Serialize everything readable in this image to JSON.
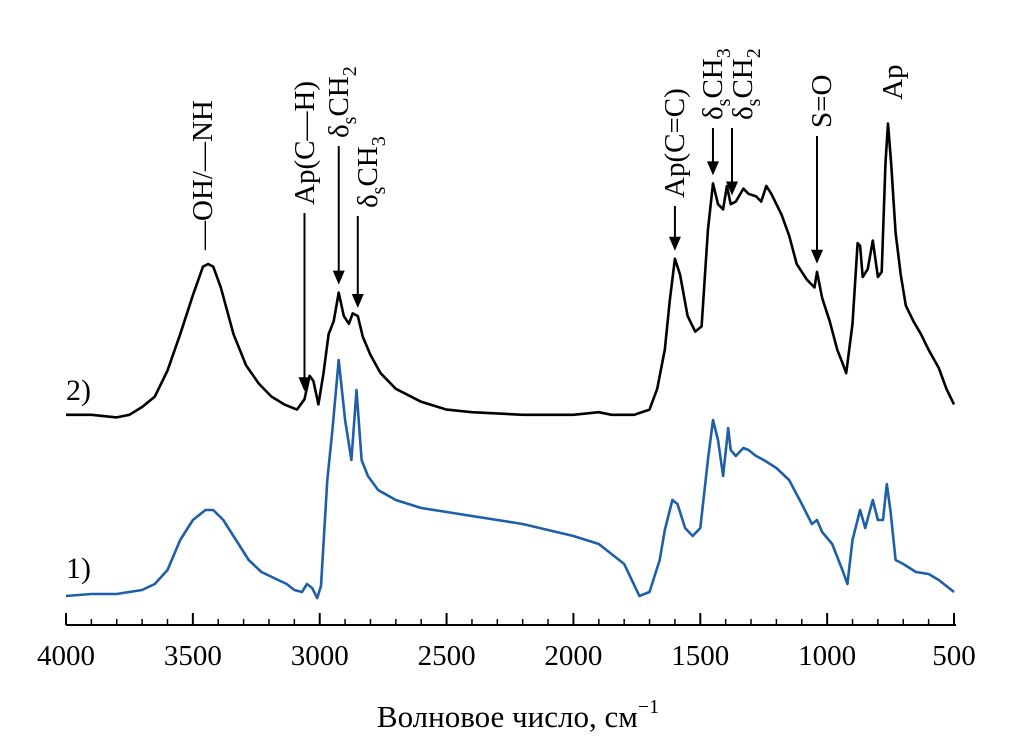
{
  "chart_data": {
    "type": "line",
    "title": "",
    "xlabel": "Волновое число, см",
    "xlabel_sup": "−1",
    "ylabel": "",
    "xlim": [
      4000,
      500
    ],
    "x_reversed": true,
    "x_ticks": [
      4000,
      3500,
      3000,
      2500,
      2000,
      1500,
      1000,
      500
    ],
    "x_tick_labels": [
      "4000",
      "3500",
      "3000",
      "2500",
      "2000",
      "1500",
      "1000",
      "500"
    ],
    "grid": false,
    "legend": "none",
    "series": [
      {
        "name": "1)",
        "color": "#1f5fa8",
        "points": [
          [
            4000,
            0.02
          ],
          [
            3900,
            0.03
          ],
          [
            3800,
            0.03
          ],
          [
            3750,
            0.04
          ],
          [
            3700,
            0.05
          ],
          [
            3650,
            0.08
          ],
          [
            3600,
            0.15
          ],
          [
            3550,
            0.3
          ],
          [
            3500,
            0.4
          ],
          [
            3450,
            0.45
          ],
          [
            3420,
            0.45
          ],
          [
            3380,
            0.4
          ],
          [
            3330,
            0.3
          ],
          [
            3280,
            0.2
          ],
          [
            3230,
            0.14
          ],
          [
            3180,
            0.11
          ],
          [
            3130,
            0.08
          ],
          [
            3100,
            0.05
          ],
          [
            3070,
            0.04
          ],
          [
            3050,
            0.08
          ],
          [
            3030,
            0.06
          ],
          [
            3010,
            0.01
          ],
          [
            2995,
            0.07
          ],
          [
            2970,
            0.6
          ],
          [
            2950,
            0.85
          ],
          [
            2925,
            1.2
          ],
          [
            2900,
            0.9
          ],
          [
            2875,
            0.7
          ],
          [
            2855,
            1.05
          ],
          [
            2835,
            0.7
          ],
          [
            2810,
            0.62
          ],
          [
            2770,
            0.55
          ],
          [
            2700,
            0.5
          ],
          [
            2600,
            0.46
          ],
          [
            2500,
            0.44
          ],
          [
            2400,
            0.42
          ],
          [
            2200,
            0.38
          ],
          [
            2000,
            0.32
          ],
          [
            1900,
            0.28
          ],
          [
            1800,
            0.18
          ],
          [
            1740,
            0.02
          ],
          [
            1700,
            0.04
          ],
          [
            1660,
            0.2
          ],
          [
            1640,
            0.35
          ],
          [
            1610,
            0.5
          ],
          [
            1590,
            0.48
          ],
          [
            1560,
            0.36
          ],
          [
            1530,
            0.32
          ],
          [
            1500,
            0.36
          ],
          [
            1470,
            0.7
          ],
          [
            1450,
            0.9
          ],
          [
            1430,
            0.8
          ],
          [
            1410,
            0.62
          ],
          [
            1390,
            0.86
          ],
          [
            1380,
            0.75
          ],
          [
            1360,
            0.72
          ],
          [
            1330,
            0.76
          ],
          [
            1310,
            0.75
          ],
          [
            1280,
            0.72
          ],
          [
            1250,
            0.7
          ],
          [
            1200,
            0.66
          ],
          [
            1150,
            0.6
          ],
          [
            1100,
            0.48
          ],
          [
            1060,
            0.38
          ],
          [
            1040,
            0.4
          ],
          [
            1020,
            0.34
          ],
          [
            980,
            0.28
          ],
          [
            940,
            0.15
          ],
          [
            920,
            0.08
          ],
          [
            900,
            0.3
          ],
          [
            870,
            0.45
          ],
          [
            850,
            0.36
          ],
          [
            820,
            0.5
          ],
          [
            800,
            0.4
          ],
          [
            780,
            0.4
          ],
          [
            765,
            0.58
          ],
          [
            750,
            0.44
          ],
          [
            730,
            0.2
          ],
          [
            700,
            0.18
          ],
          [
            650,
            0.14
          ],
          [
            600,
            0.13
          ],
          [
            560,
            0.1
          ],
          [
            530,
            0.07
          ],
          [
            500,
            0.04
          ]
        ]
      },
      {
        "name": "2)",
        "color": "#000000",
        "points": [
          [
            4000,
            0.02
          ],
          [
            3900,
            0.02
          ],
          [
            3800,
            0.01
          ],
          [
            3750,
            0.02
          ],
          [
            3700,
            0.05
          ],
          [
            3650,
            0.09
          ],
          [
            3600,
            0.19
          ],
          [
            3550,
            0.33
          ],
          [
            3500,
            0.48
          ],
          [
            3460,
            0.59
          ],
          [
            3440,
            0.6
          ],
          [
            3420,
            0.59
          ],
          [
            3390,
            0.51
          ],
          [
            3340,
            0.33
          ],
          [
            3290,
            0.21
          ],
          [
            3240,
            0.14
          ],
          [
            3190,
            0.09
          ],
          [
            3140,
            0.06
          ],
          [
            3090,
            0.04
          ],
          [
            3060,
            0.08
          ],
          [
            3040,
            0.17
          ],
          [
            3025,
            0.15
          ],
          [
            3005,
            0.06
          ],
          [
            2985,
            0.18
          ],
          [
            2965,
            0.33
          ],
          [
            2945,
            0.38
          ],
          [
            2925,
            0.49
          ],
          [
            2905,
            0.4
          ],
          [
            2885,
            0.37
          ],
          [
            2870,
            0.41
          ],
          [
            2850,
            0.4
          ],
          [
            2830,
            0.32
          ],
          [
            2800,
            0.25
          ],
          [
            2760,
            0.18
          ],
          [
            2700,
            0.12
          ],
          [
            2600,
            0.07
          ],
          [
            2500,
            0.04
          ],
          [
            2400,
            0.03
          ],
          [
            2200,
            0.02
          ],
          [
            2000,
            0.02
          ],
          [
            1900,
            0.03
          ],
          [
            1850,
            0.02
          ],
          [
            1760,
            0.02
          ],
          [
            1700,
            0.04
          ],
          [
            1670,
            0.12
          ],
          [
            1640,
            0.27
          ],
          [
            1620,
            0.46
          ],
          [
            1600,
            0.62
          ],
          [
            1580,
            0.56
          ],
          [
            1550,
            0.4
          ],
          [
            1520,
            0.34
          ],
          [
            1495,
            0.36
          ],
          [
            1470,
            0.73
          ],
          [
            1450,
            0.91
          ],
          [
            1430,
            0.83
          ],
          [
            1410,
            0.81
          ],
          [
            1395,
            0.9
          ],
          [
            1380,
            0.83
          ],
          [
            1360,
            0.84
          ],
          [
            1330,
            0.89
          ],
          [
            1310,
            0.87
          ],
          [
            1280,
            0.86
          ],
          [
            1260,
            0.84
          ],
          [
            1240,
            0.9
          ],
          [
            1220,
            0.87
          ],
          [
            1180,
            0.79
          ],
          [
            1150,
            0.71
          ],
          [
            1120,
            0.6
          ],
          [
            1080,
            0.54
          ],
          [
            1050,
            0.51
          ],
          [
            1040,
            0.57
          ],
          [
            1020,
            0.47
          ],
          [
            990,
            0.38
          ],
          [
            960,
            0.27
          ],
          [
            940,
            0.22
          ],
          [
            925,
            0.18
          ],
          [
            900,
            0.37
          ],
          [
            880,
            0.68
          ],
          [
            870,
            0.67
          ],
          [
            860,
            0.55
          ],
          [
            840,
            0.58
          ],
          [
            820,
            0.69
          ],
          [
            800,
            0.55
          ],
          [
            785,
            0.57
          ],
          [
            770,
            0.99
          ],
          [
            760,
            1.14
          ],
          [
            748,
            0.99
          ],
          [
            730,
            0.72
          ],
          [
            710,
            0.56
          ],
          [
            690,
            0.44
          ],
          [
            660,
            0.38
          ],
          [
            630,
            0.33
          ],
          [
            600,
            0.27
          ],
          [
            560,
            0.2
          ],
          [
            530,
            0.12
          ],
          [
            500,
            0.06
          ]
        ]
      }
    ],
    "annotations": [
      {
        "text": "—OH/—NH",
        "x": 3440,
        "arrow": false
      },
      {
        "text": "Ар(С—Н)",
        "x": 3060,
        "arrow": true
      },
      {
        "text": "δ",
        "sub": "s",
        "text2": "CH",
        "sub2": "2",
        "x": 2925,
        "arrow": true
      },
      {
        "text": "δ",
        "sub": "s",
        "text2": "CH",
        "sub2": "3",
        "x": 2850,
        "arrow": true
      },
      {
        "text": "Ар(С=С)",
        "x": 1600,
        "arrow": true
      },
      {
        "text": "δ",
        "sub": "s",
        "text2": "CH",
        "sub2": "3",
        "x": 1450,
        "arrow": true
      },
      {
        "text": "δ",
        "sub": "s",
        "text2": "CH",
        "sub2": "2",
        "x": 1375,
        "arrow": true
      },
      {
        "text": "S=O",
        "x": 1040,
        "arrow": true
      },
      {
        "text": "Ар",
        "x": 760,
        "arrow": false
      }
    ]
  }
}
